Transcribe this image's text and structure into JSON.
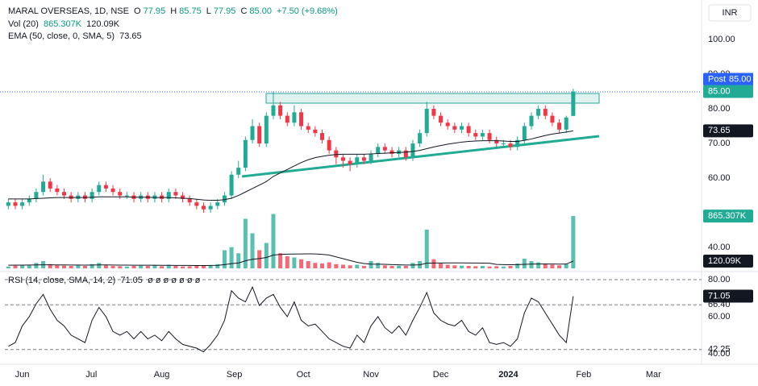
{
  "legend": {
    "ohlc": [
      {
        "key": "O",
        "value": "77.95"
      },
      {
        "key": "H",
        "value": "85.75"
      },
      {
        "key": "L",
        "value": "77.95"
      },
      {
        "key": "C",
        "value": "85.00"
      }
    ],
    "change": "+7.50 (+9.68%)",
    "volume_values": [
      "865.307K",
      "120.09K"
    ],
    "ema_value": "73.65",
    "rsi_value": "71.05",
    "rsi_extras": "ø ø ø ø ø ø ø",
    "currency": "INR",
    "post_label": "Post"
  },
  "chart_data": [
    {
      "type": "candlestick",
      "title": "MARAL OVERSEAS, 1D, NSE",
      "up_color": "#22ab94",
      "down_color": "#f23645",
      "open": [
        52,
        53,
        52,
        53,
        54,
        56,
        59,
        57,
        56,
        55,
        54,
        55,
        54,
        56,
        58,
        57,
        56,
        55,
        55,
        54,
        55,
        54,
        55,
        54,
        56,
        55,
        54,
        53,
        52,
        51,
        52,
        53,
        55,
        61,
        63,
        71,
        75,
        70,
        78,
        81,
        78,
        76,
        79,
        75,
        74,
        73,
        71,
        68,
        66,
        65,
        64,
        66,
        65,
        67,
        69,
        68,
        67,
        68,
        66,
        70,
        73,
        80,
        78,
        76,
        75,
        74,
        75,
        73,
        72,
        73,
        71,
        70,
        70,
        69,
        71,
        75,
        78,
        80,
        78,
        76,
        74,
        77.95
      ],
      "high": [
        54,
        54,
        54,
        55,
        57,
        61,
        60,
        58,
        57,
        56,
        56,
        56,
        57,
        59,
        59,
        58,
        57,
        56,
        56,
        56,
        56,
        56,
        56,
        57,
        57,
        56,
        55,
        54,
        53,
        53,
        54,
        56,
        62,
        65,
        72,
        77,
        76,
        79,
        85,
        82,
        79,
        81,
        80,
        76,
        75,
        74,
        72,
        69,
        67,
        66,
        67,
        67,
        68,
        70,
        70,
        69,
        69,
        69,
        71,
        74,
        82,
        81,
        79,
        77,
        76,
        76,
        76,
        74,
        74,
        74,
        72,
        71,
        71,
        72,
        76,
        79,
        81,
        81,
        79,
        77,
        78,
        85.75
      ],
      "low": [
        51,
        51,
        51,
        52,
        53,
        55,
        56,
        55,
        54,
        53,
        53,
        53,
        53,
        55,
        56,
        55,
        54,
        54,
        53,
        53,
        53,
        53,
        53,
        53,
        54,
        53,
        52,
        51,
        50,
        50,
        51,
        52,
        54,
        60,
        62,
        70,
        69,
        69,
        77,
        77,
        75,
        75,
        74,
        73,
        72,
        70,
        67,
        64,
        63,
        62,
        63,
        64,
        64,
        66,
        67,
        66,
        66,
        65,
        65,
        69,
        72,
        77,
        75,
        74,
        73,
        73,
        72,
        71,
        71,
        70,
        69,
        69,
        68,
        68,
        70,
        74,
        77,
        77,
        75,
        73,
        73,
        77.95
      ],
      "close": [
        53,
        52,
        53,
        54,
        56,
        59,
        57,
        56,
        55,
        54,
        55,
        54,
        56,
        58,
        57,
        56,
        55,
        55,
        54,
        55,
        54,
        55,
        54,
        56,
        55,
        54,
        53,
        52,
        51,
        52,
        53,
        55,
        61,
        63,
        71,
        75,
        70,
        78,
        81,
        78,
        76,
        79,
        75,
        74,
        73,
        71,
        68,
        66,
        65,
        64,
        66,
        65,
        67,
        69,
        68,
        67,
        68,
        66,
        70,
        73,
        80,
        78,
        76,
        75,
        74,
        75,
        73,
        72,
        73,
        71,
        70,
        70,
        69,
        71,
        75,
        78,
        80,
        78,
        76,
        74,
        77.5,
        85
      ],
      "lines": [
        {
          "name": "EMA (50, close, 0, SMA, 5)",
          "color": "#131722",
          "values": [
            54,
            54,
            54,
            54,
            54.1,
            54.2,
            54.3,
            54.4,
            54.4,
            54.4,
            54.4,
            54.4,
            54.5,
            54.6,
            54.6,
            54.6,
            54.6,
            54.6,
            54.5,
            54.5,
            54.5,
            54.4,
            54.4,
            54.4,
            54.3,
            54.2,
            54.1,
            53.9,
            53.7,
            53.6,
            53.6,
            53.8,
            54.2,
            55,
            56,
            57,
            58,
            59,
            60.5,
            61.5,
            62.5,
            63.5,
            64.5,
            65.3,
            65.9,
            66.3,
            66.6,
            66.8,
            66.9,
            66.9,
            66.9,
            66.9,
            67,
            67.1,
            67.2,
            67.3,
            67.4,
            67.5,
            67.7,
            68,
            68.5,
            69,
            69.4,
            69.8,
            70.1,
            70.4,
            70.6,
            70.7,
            70.8,
            70.8,
            70.8,
            70.7,
            70.6,
            70.6,
            70.9,
            71.3,
            71.8,
            72.3,
            72.7,
            73,
            73.3,
            73.65
          ]
        }
      ],
      "xlim": [
        -0.5,
        99.4
      ],
      "ylim": [
        33.5,
        111.4
      ],
      "yticks": [
        {
          "value": 40,
          "label": "40.00"
        },
        {
          "value": 60,
          "label": "60.00"
        },
        {
          "value": 70,
          "label": "70.00"
        },
        {
          "value": 80,
          "label": "80.00"
        },
        {
          "value": 90,
          "label": "90.00"
        },
        {
          "value": 100,
          "label": "100.00"
        }
      ]
    },
    {
      "type": "bar",
      "title": "Vol (20)",
      "xlim": [
        -0.5,
        99.4
      ],
      "ylim": [
        0,
        1000000
      ],
      "values": [
        30000,
        45000,
        60000,
        50000,
        90000,
        120000,
        70000,
        50000,
        45000,
        40000,
        50000,
        40000,
        70000,
        90000,
        50000,
        40000,
        35000,
        30000,
        40000,
        45000,
        40000,
        50000,
        35000,
        60000,
        40000,
        30000,
        35000,
        40000,
        50000,
        45000,
        70000,
        300000,
        350000,
        250000,
        820000,
        580000,
        300000,
        420000,
        900000,
        250000,
        200000,
        180000,
        150000,
        120000,
        90000,
        80000,
        100000,
        70000,
        60000,
        50000,
        60000,
        40000,
        120000,
        90000,
        50000,
        40000,
        45000,
        40000,
        90000,
        120000,
        640000,
        150000,
        80000,
        60000,
        50000,
        45000,
        40000,
        35000,
        40000,
        30000,
        35000,
        30000,
        40000,
        80000,
        160000,
        120000,
        100000,
        80000,
        60000,
        50000,
        70000,
        865307
      ],
      "lines": [
        {
          "color": "#131722",
          "values": [
            52000,
            53000,
            54000,
            55000,
            57000,
            58000,
            58000,
            57000,
            56000,
            55000,
            55000,
            54000,
            55000,
            56000,
            56000,
            55000,
            54000,
            53000,
            52000,
            52000,
            51000,
            51000,
            50000,
            50000,
            49000,
            48000,
            48000,
            47000,
            47000,
            48000,
            50000,
            62000,
            78000,
            88000,
            125000,
            150000,
            162000,
            180000,
            220000,
            230000,
            235000,
            236000,
            238000,
            240000,
            238000,
            232000,
            220000,
            190000,
            160000,
            130000,
            100000,
            80000,
            70000,
            68000,
            66000,
            62000,
            58000,
            55000,
            55000,
            58000,
            85000,
            88000,
            89000,
            90000,
            90000,
            90000,
            89000,
            88000,
            87000,
            85000,
            65000,
            62000,
            60000,
            62000,
            66000,
            70000,
            72000,
            72000,
            71000,
            70000,
            71000,
            120090
          ]
        }
      ]
    },
    {
      "type": "line",
      "title": "RSI (14, close, SMA, 14, 2)",
      "color": "#131722",
      "xlim": [
        -0.5,
        99.4
      ],
      "ylim": [
        34.3,
        83.9
      ],
      "values": [
        44,
        46,
        55,
        60,
        67,
        72,
        64,
        58,
        55,
        50,
        48,
        46,
        58,
        65,
        60,
        52,
        50,
        52,
        48,
        52,
        48,
        50,
        47,
        52,
        48,
        45,
        44,
        43,
        41,
        45,
        50,
        58,
        74,
        70,
        68,
        76,
        66,
        70,
        72,
        65,
        60,
        68,
        58,
        55,
        56,
        52,
        48,
        46,
        44,
        43,
        50,
        46,
        55,
        60,
        54,
        51,
        55,
        50,
        58,
        65,
        73,
        62,
        58,
        56,
        55,
        58,
        52,
        50,
        54,
        46,
        45,
        46,
        44,
        48,
        62,
        70,
        68,
        62,
        56,
        50,
        46,
        71.05
      ],
      "yticks": [
        {
          "value": 60,
          "label": "60.00"
        },
        {
          "value": 40,
          "label": "40.00"
        }
      ],
      "levels": [
        {
          "value": 80,
          "label": "80.00"
        },
        {
          "value": 66.4,
          "label": "66.40"
        },
        {
          "value": 42.25,
          "label": "42.25"
        }
      ],
      "xticks": [
        {
          "value": 2.0,
          "label": "Jun"
        },
        {
          "value": 11.9,
          "label": "Jul"
        },
        {
          "value": 22.0,
          "label": "Aug"
        },
        {
          "value": 32.4,
          "label": "Sep"
        },
        {
          "value": 42.3,
          "label": "Oct"
        },
        {
          "value": 52.0,
          "label": "Nov"
        },
        {
          "value": 62.0,
          "label": "Dec"
        },
        {
          "value": 71.7,
          "label": "2024"
        },
        {
          "value": 82.5,
          "label": "Feb"
        },
        {
          "value": 92.5,
          "label": "Mar"
        }
      ]
    }
  ]
}
